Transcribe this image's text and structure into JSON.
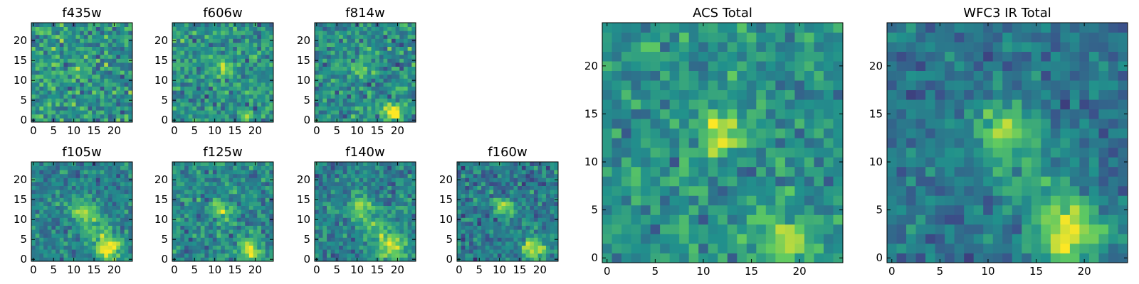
{
  "figure": {
    "colormap": [
      "#440154",
      "#3b528b",
      "#21918c",
      "#5ec962",
      "#fde725"
    ],
    "pixel_value_range": [
      0,
      1
    ],
    "tick_color": "#000000"
  },
  "chart_data": [
    {
      "type": "heatmap",
      "id": "f435w",
      "title": "f435w",
      "xlim": [
        0,
        24
      ],
      "ylim": [
        0,
        24
      ],
      "xticks": [
        0,
        5,
        10,
        15,
        20
      ],
      "yticks": [
        0,
        5,
        10,
        15,
        20
      ],
      "grid": false,
      "noise": 0.17,
      "background": 0.52,
      "sources": [
        {
          "x": 12,
          "y": 13,
          "amplitude": 0.22,
          "sigma": 1.6
        }
      ]
    },
    {
      "type": "heatmap",
      "id": "f606w",
      "title": "f606w",
      "xlim": [
        0,
        24
      ],
      "ylim": [
        0,
        24
      ],
      "xticks": [
        0,
        5,
        10,
        15,
        20
      ],
      "yticks": [
        0,
        5,
        10,
        15,
        20
      ],
      "grid": false,
      "noise": 0.15,
      "background": 0.5,
      "sources": [
        {
          "x": 12,
          "y": 13,
          "amplitude": 0.42,
          "sigma": 1.3
        },
        {
          "x": 18,
          "y": 1,
          "amplitude": 0.3,
          "sigma": 1.0
        }
      ]
    },
    {
      "type": "heatmap",
      "id": "f814w",
      "title": "f814w",
      "xlim": [
        0,
        24
      ],
      "ylim": [
        0,
        24
      ],
      "xticks": [
        0,
        5,
        10,
        15,
        20
      ],
      "yticks": [
        0,
        5,
        10,
        15,
        20
      ],
      "grid": false,
      "noise": 0.15,
      "background": 0.48,
      "sources": [
        {
          "x": 11,
          "y": 13,
          "amplitude": 0.26,
          "sigma": 1.5
        },
        {
          "x": 18.5,
          "y": 2,
          "amplitude": 0.55,
          "sigma": 1.7
        }
      ]
    },
    {
      "type": "heatmap",
      "id": "f105w",
      "title": "f105w",
      "xlim": [
        0,
        24
      ],
      "ylim": [
        0,
        24
      ],
      "xticks": [
        0,
        5,
        10,
        15,
        20
      ],
      "yticks": [
        0,
        5,
        10,
        15,
        20
      ],
      "grid": false,
      "noise": 0.12,
      "background": 0.44,
      "sources": [
        {
          "x": 11.5,
          "y": 12.5,
          "amplitude": 0.36,
          "sigma": 2.0
        },
        {
          "x": 18.5,
          "y": 3,
          "amplitude": 0.55,
          "sigma": 2.3
        },
        {
          "x": 15,
          "y": 8,
          "amplitude": 0.18,
          "sigma": 2.5
        }
      ]
    },
    {
      "type": "heatmap",
      "id": "f125w",
      "title": "f125w",
      "xlim": [
        0,
        24
      ],
      "ylim": [
        0,
        24
      ],
      "xticks": [
        0,
        5,
        10,
        15,
        20
      ],
      "yticks": [
        0,
        5,
        10,
        15,
        20
      ],
      "grid": false,
      "noise": 0.13,
      "background": 0.46,
      "sources": [
        {
          "x": 11.5,
          "y": 12.5,
          "amplitude": 0.28,
          "sigma": 2.0
        },
        {
          "x": 18.5,
          "y": 2.5,
          "amplitude": 0.45,
          "sigma": 2.0
        }
      ]
    },
    {
      "type": "heatmap",
      "id": "f140w",
      "title": "f140w",
      "xlim": [
        0,
        24
      ],
      "ylim": [
        0,
        24
      ],
      "xticks": [
        0,
        5,
        10,
        15,
        20
      ],
      "yticks": [
        0,
        5,
        10,
        15,
        20
      ],
      "grid": false,
      "noise": 0.12,
      "background": 0.44,
      "sources": [
        {
          "x": 11,
          "y": 13,
          "amplitude": 0.42,
          "sigma": 2.1
        },
        {
          "x": 18.5,
          "y": 3.5,
          "amplitude": 0.45,
          "sigma": 2.4
        },
        {
          "x": 15,
          "y": 8,
          "amplitude": 0.2,
          "sigma": 2.6
        }
      ]
    },
    {
      "type": "heatmap",
      "id": "f160w",
      "title": "f160w",
      "xlim": [
        0,
        24
      ],
      "ylim": [
        0,
        24
      ],
      "xticks": [
        0,
        5,
        10,
        15,
        20
      ],
      "yticks": [
        0,
        5,
        10,
        15,
        20
      ],
      "grid": false,
      "noise": 0.13,
      "background": 0.4,
      "sources": [
        {
          "x": 11,
          "y": 13,
          "amplitude": 0.5,
          "sigma": 1.8
        },
        {
          "x": 18.5,
          "y": 2.5,
          "amplitude": 0.58,
          "sigma": 2.0
        }
      ]
    },
    {
      "type": "heatmap",
      "id": "acs-total",
      "title": "ACS Total",
      "xlim": [
        0,
        24
      ],
      "ylim": [
        0,
        24
      ],
      "xticks": [
        0,
        5,
        10,
        15,
        20
      ],
      "yticks": [
        0,
        5,
        10,
        15,
        20
      ],
      "grid": false,
      "noise": 0.12,
      "background": 0.5,
      "sources": [
        {
          "x": 12,
          "y": 13,
          "amplitude": 0.45,
          "sigma": 1.5
        },
        {
          "x": 18,
          "y": 2,
          "amplitude": 0.42,
          "sigma": 1.7
        }
      ]
    },
    {
      "type": "heatmap",
      "id": "wfc3-ir-total",
      "title": "WFC3 IR Total",
      "xlim": [
        0,
        24
      ],
      "ylim": [
        0,
        24
      ],
      "xticks": [
        0,
        5,
        10,
        15,
        20
      ],
      "yticks": [
        0,
        5,
        10,
        15,
        20
      ],
      "grid": false,
      "noise": 0.1,
      "background": 0.38,
      "sources": [
        {
          "x": 11.5,
          "y": 13,
          "amplitude": 0.46,
          "sigma": 2.1
        },
        {
          "x": 18.5,
          "y": 2.5,
          "amplitude": 0.58,
          "sigma": 2.4
        },
        {
          "x": 15,
          "y": 8,
          "amplitude": 0.18,
          "sigma": 2.8
        }
      ]
    }
  ]
}
